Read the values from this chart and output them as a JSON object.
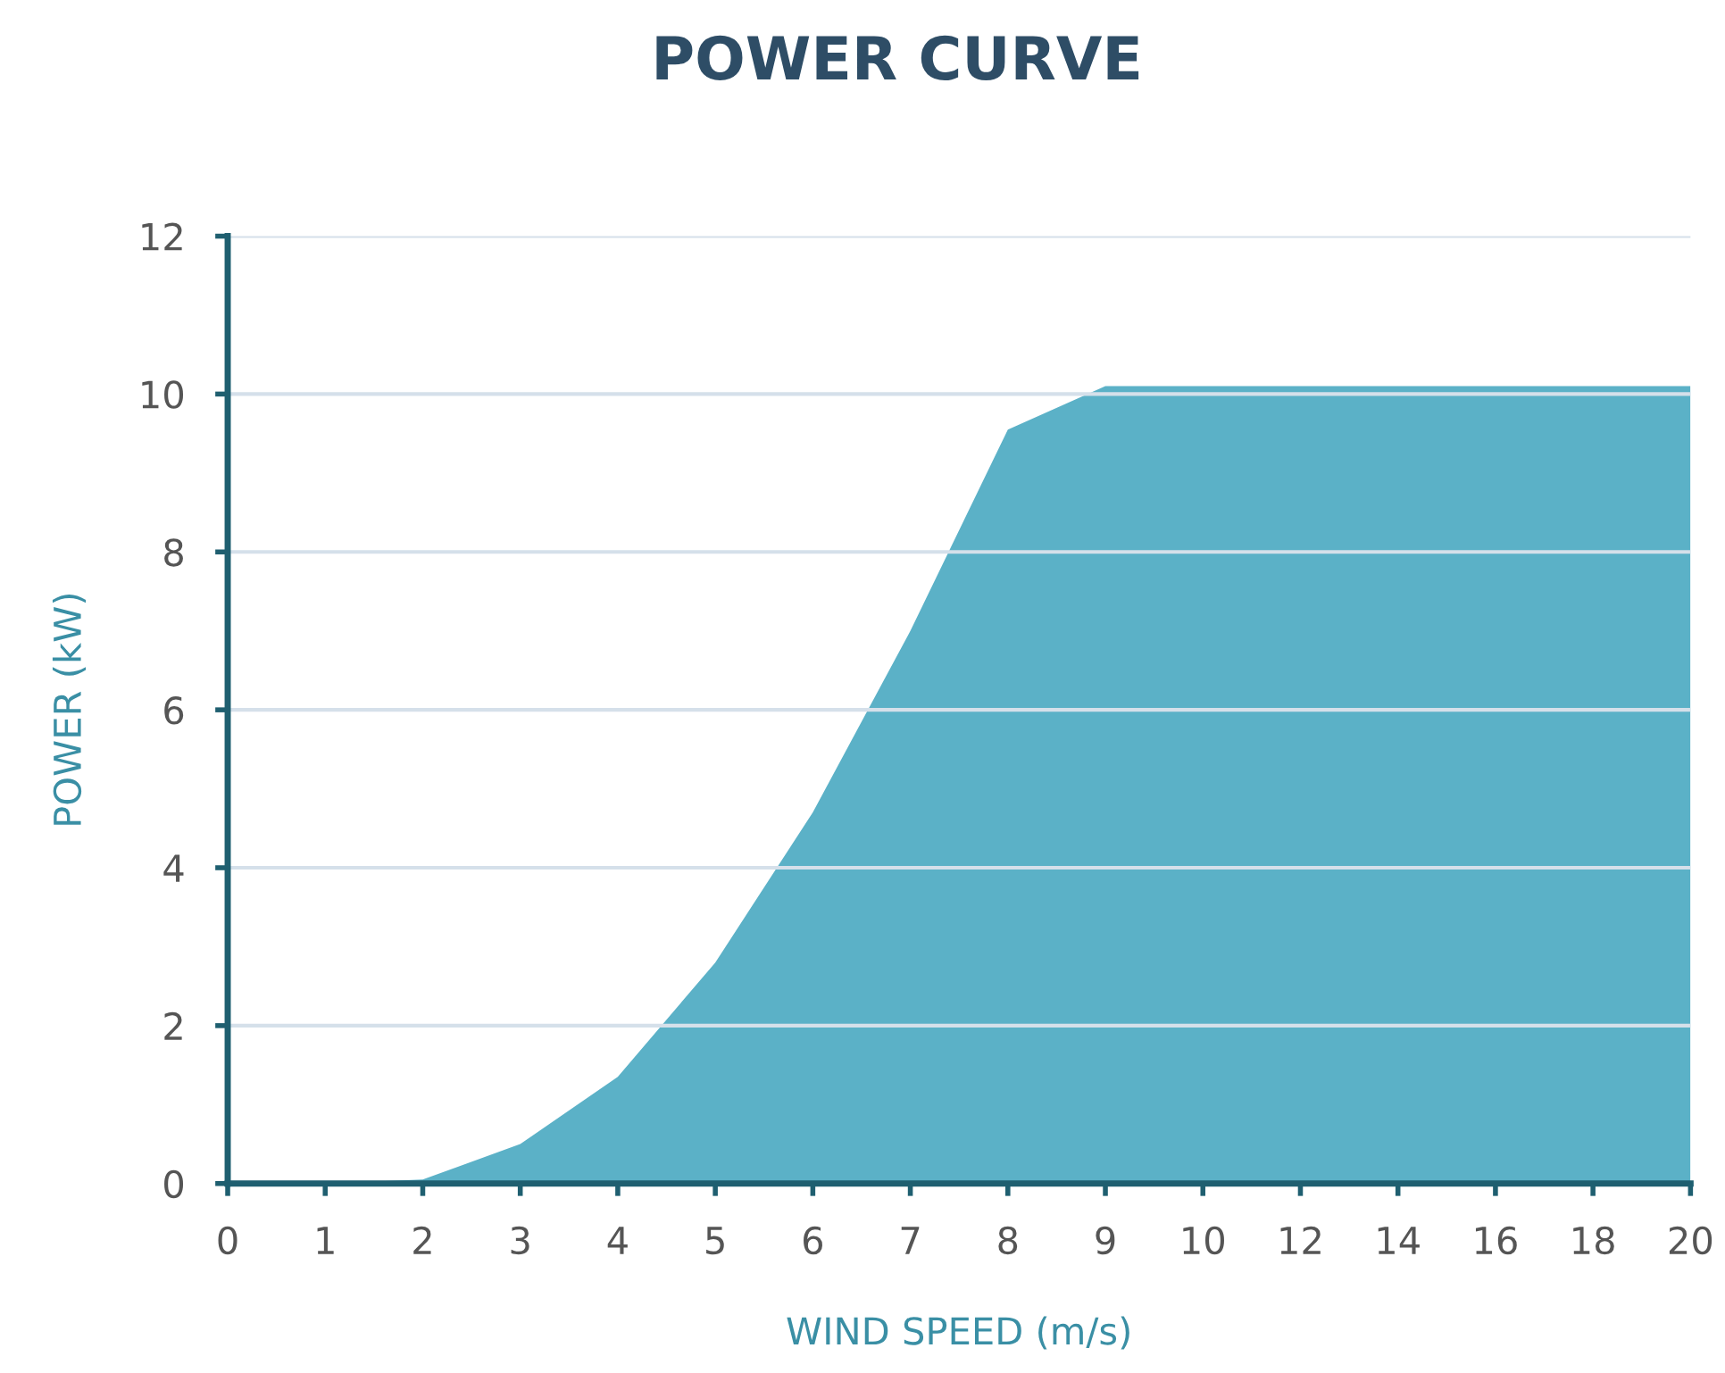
{
  "chart_data": {
    "type": "area",
    "title": "POWER CURVE",
    "xlabel": "WIND SPEED (m/s)",
    "ylabel": "POWER (kW)",
    "categories": [
      "0",
      "1",
      "2",
      "3",
      "4",
      "5",
      "6",
      "7",
      "8",
      "9",
      "10",
      "12",
      "14",
      "16",
      "18",
      "20"
    ],
    "series": [
      {
        "color": "#5bb1c7",
        "values": [
          0,
          0,
          0.05,
          0.5,
          1.35,
          2.8,
          4.7,
          7.0,
          9.55,
          10.1,
          10.1,
          10.1,
          10.1,
          10.1,
          10.1,
          10.1
        ]
      }
    ],
    "ylim": [
      0,
      12
    ],
    "yticks": [
      0,
      2,
      4,
      6,
      8,
      10,
      12
    ],
    "grid": "y",
    "legend": false
  }
}
